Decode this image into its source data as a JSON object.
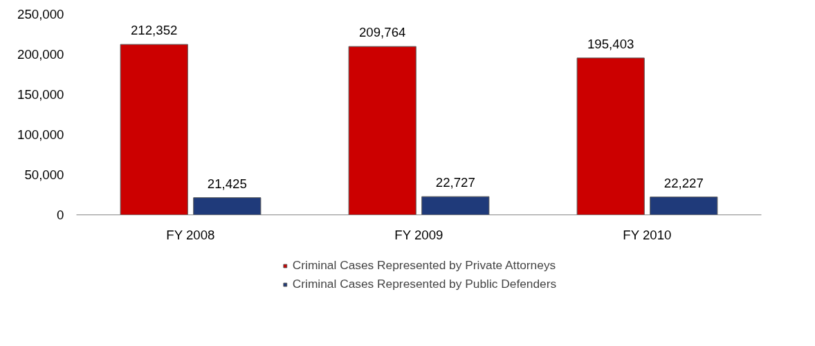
{
  "chart_data": {
    "type": "bar",
    "categories": [
      "FY 2008",
      "FY 2009",
      "FY 2010"
    ],
    "series": [
      {
        "name": "Criminal Cases Represented by Private Attorneys",
        "color": "#cc0000",
        "values": [
          212352,
          209764,
          195403
        ],
        "value_labels": [
          "212,352",
          "209,764",
          "195,403"
        ]
      },
      {
        "name": "Criminal Cases Represented by Public Defenders",
        "color": "#1f3a7a",
        "values": [
          21425,
          22727,
          22227
        ],
        "value_labels": [
          "21,425",
          "22,727",
          "22,227"
        ]
      }
    ],
    "ylim": [
      0,
      250000
    ],
    "yticks": [
      0,
      {
        "value": 50000,
        "label": "50,000"
      },
      {
        "value": 100000,
        "label": "100,000"
      },
      {
        "value": 150000,
        "label": "150,000"
      },
      {
        "value": 200000,
        "label": "200,000"
      },
      {
        "value": 250000,
        "label": "250,000"
      }
    ],
    "grid": false,
    "legend": "bottom"
  }
}
